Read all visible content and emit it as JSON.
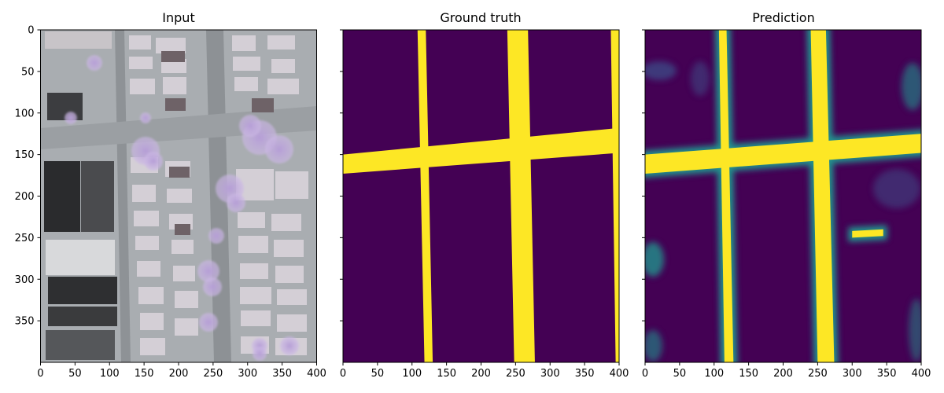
{
  "chart_data": [
    {
      "type": "heatmap",
      "title": "Input",
      "content": "aerial-image",
      "xlim": [
        0,
        400
      ],
      "ylim": [
        400,
        0
      ],
      "xticks": [
        0,
        50,
        100,
        150,
        200,
        250,
        300,
        350,
        400
      ],
      "yticks": [
        0,
        50,
        100,
        150,
        200,
        250,
        300,
        350
      ],
      "show_ytick_labels": true
    },
    {
      "type": "heatmap",
      "title": "Ground truth",
      "content": "binary-road-mask",
      "colormap": "viridis",
      "xlim": [
        0,
        400
      ],
      "ylim": [
        400,
        0
      ],
      "xticks": [
        0,
        50,
        100,
        150,
        200,
        250,
        300,
        350,
        400
      ],
      "yticks": [
        0,
        50,
        100,
        150,
        200,
        250,
        300,
        350
      ],
      "show_ytick_labels": false,
      "road_polygons": [
        [
          [
            108,
            0
          ],
          [
            120,
            0
          ],
          [
            130,
            400
          ],
          [
            118,
            400
          ]
        ],
        [
          [
            238,
            0
          ],
          [
            268,
            0
          ],
          [
            278,
            400
          ],
          [
            248,
            400
          ]
        ],
        [
          [
            388,
            0
          ],
          [
            400,
            0
          ],
          [
            400,
            400
          ],
          [
            395,
            400
          ]
        ],
        [
          [
            0,
            150
          ],
          [
            400,
            118
          ],
          [
            400,
            148
          ],
          [
            0,
            173
          ]
        ]
      ]
    },
    {
      "type": "heatmap",
      "title": "Prediction",
      "content": "road-probability-map",
      "colormap": "viridis",
      "xlim": [
        0,
        400
      ],
      "ylim": [
        400,
        0
      ],
      "xticks": [
        0,
        50,
        100,
        150,
        200,
        250,
        300,
        350,
        400
      ],
      "yticks": [
        0,
        50,
        100,
        150,
        200,
        250,
        300,
        350
      ],
      "show_ytick_labels": false,
      "road_polygons": [
        [
          [
            107,
            0
          ],
          [
            118,
            0
          ],
          [
            128,
            400
          ],
          [
            115,
            400
          ]
        ],
        [
          [
            240,
            0
          ],
          [
            262,
            0
          ],
          [
            274,
            400
          ],
          [
            250,
            400
          ]
        ],
        [
          [
            0,
            150
          ],
          [
            400,
            125
          ],
          [
            400,
            148
          ],
          [
            0,
            173
          ]
        ],
        [
          [
            300,
            242
          ],
          [
            345,
            240
          ],
          [
            345,
            248
          ],
          [
            300,
            250
          ]
        ]
      ]
    }
  ],
  "colors": {
    "viridis_low": "#440154",
    "viridis_high": "#fde725",
    "viridis_mid_teal": "#21918c",
    "viridis_mid_blue": "#3b528b"
  }
}
